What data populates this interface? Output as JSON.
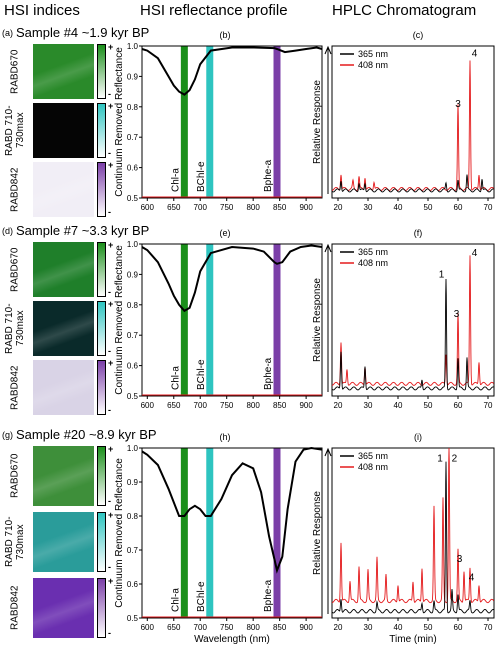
{
  "headers": {
    "col1": "HSI indices",
    "col2": "HSI reflectance profile",
    "col3": "HPLC Chromatogram"
  },
  "colors": {
    "chla": "#1a8f1a",
    "bchle": "#2ec4c0",
    "bphea": "#7b3fa8",
    "nm365": "#000000",
    "nm408": "#e41a1c"
  },
  "panels": [
    {
      "letters": [
        "(a)",
        "(b)",
        "(c)"
      ],
      "sample_title": "Sample #4 ~1.9 kyr BP",
      "heatmap_labels": [
        "RABD670",
        "RABD 710-730max",
        "RABD842"
      ],
      "heat_colors": [
        "#2a8a2a",
        "#060606",
        "#f1eef6"
      ]
    },
    {
      "letters": [
        "(d)",
        "(e)",
        "(f)"
      ],
      "sample_title": "Sample #7 ~3.3 kyr BP",
      "heatmap_labels": [
        "RABD670",
        "RABD 710-730max",
        "RABD842"
      ],
      "heat_colors": [
        "#1f7f2a",
        "#0a2a2a",
        "#d9d3e6"
      ]
    },
    {
      "letters": [
        "(g)",
        "(h)",
        "(i)"
      ],
      "sample_title": "Sample #20 ~8.9 kyr BP",
      "heatmap_labels": [
        "RABD670",
        "RABD 710-730max",
        "RABD842"
      ],
      "heat_colors": [
        "#3e8f3a",
        "#2a9c9a",
        "#6a2fb0"
      ]
    }
  ],
  "chart_data": [
    {
      "type": "line",
      "title": "(b)",
      "ylabel": "Continuum Removed Reflectance",
      "xlabel": "",
      "xlim": [
        590,
        930
      ],
      "ylim": [
        0.5,
        1.0
      ],
      "xticks": [
        600,
        650,
        700,
        750,
        800,
        850,
        900
      ],
      "yticks": [
        0.5,
        0.6,
        0.7,
        0.8,
        0.9,
        1.0
      ],
      "bands": [
        {
          "name": "Chl-a",
          "x": 670
        },
        {
          "name": "BChl-e",
          "x": 718
        },
        {
          "name": "Bphe-a",
          "x": 845
        }
      ],
      "x": [
        590,
        600,
        620,
        640,
        650,
        660,
        670,
        680,
        690,
        700,
        720,
        760,
        800,
        840,
        845,
        860,
        880,
        900,
        920,
        930
      ],
      "y": [
        0.99,
        0.985,
        0.96,
        0.9,
        0.87,
        0.85,
        0.84,
        0.855,
        0.89,
        0.94,
        0.985,
        0.995,
        0.995,
        0.993,
        0.99,
        0.98,
        0.985,
        0.99,
        0.995,
        0.99
      ]
    },
    {
      "type": "line",
      "title": "(e)",
      "ylabel": "Continuum Removed Reflectance",
      "xlabel": "",
      "xlim": [
        590,
        930
      ],
      "ylim": [
        0.5,
        1.0
      ],
      "xticks": [
        600,
        650,
        700,
        750,
        800,
        850,
        900
      ],
      "yticks": [
        0.5,
        0.6,
        0.7,
        0.8,
        0.9,
        1.0
      ],
      "bands": [
        {
          "name": "Chl-a",
          "x": 670
        },
        {
          "name": "BChl-e",
          "x": 718
        },
        {
          "name": "Bphe-a",
          "x": 845
        }
      ],
      "x": [
        590,
        600,
        620,
        640,
        650,
        660,
        670,
        680,
        690,
        700,
        720,
        760,
        800,
        820,
        840,
        845,
        855,
        870,
        890,
        910,
        930
      ],
      "y": [
        0.99,
        0.98,
        0.94,
        0.87,
        0.83,
        0.8,
        0.78,
        0.79,
        0.84,
        0.91,
        0.97,
        0.99,
        0.985,
        0.975,
        0.94,
        0.935,
        0.94,
        0.975,
        0.99,
        0.995,
        0.99
      ]
    },
    {
      "type": "line",
      "title": "(h)",
      "ylabel": "Continuum Removed Reflectance",
      "xlabel": "Wavelength (nm)",
      "xlim": [
        590,
        930
      ],
      "ylim": [
        0.5,
        1.0
      ],
      "xticks": [
        600,
        650,
        700,
        750,
        800,
        850,
        900
      ],
      "yticks": [
        0.5,
        0.6,
        0.7,
        0.8,
        0.9,
        1.0
      ],
      "bands": [
        {
          "name": "Chl-a",
          "x": 670
        },
        {
          "name": "BChl-e",
          "x": 718
        },
        {
          "name": "Bphe-a",
          "x": 845
        }
      ],
      "x": [
        590,
        600,
        620,
        640,
        650,
        660,
        670,
        680,
        690,
        700,
        710,
        720,
        740,
        760,
        780,
        800,
        815,
        830,
        845,
        855,
        865,
        880,
        895,
        910,
        930
      ],
      "y": [
        0.99,
        0.98,
        0.95,
        0.88,
        0.84,
        0.8,
        0.8,
        0.82,
        0.83,
        0.82,
        0.8,
        0.8,
        0.85,
        0.92,
        0.955,
        0.94,
        0.87,
        0.74,
        0.64,
        0.68,
        0.82,
        0.96,
        0.995,
        1.0,
        0.995
      ]
    },
    {
      "type": "line",
      "title": "(c)",
      "ylabel": "Relative Response",
      "xlabel": "",
      "xlim": [
        18,
        72
      ],
      "xticks": [
        20,
        30,
        40,
        50,
        60,
        70
      ],
      "series": [
        {
          "name": "365 nm",
          "baseline": 0.05,
          "peaks": [
            [
              21,
              0.07
            ],
            [
              27,
              0.05
            ],
            [
              29,
              0.05
            ],
            [
              56,
              0.05
            ],
            [
              60,
              0.07
            ],
            [
              63,
              0.1
            ],
            [
              68,
              0.08
            ]
          ]
        },
        {
          "name": "408 nm",
          "baseline": 0.06,
          "peaks": [
            [
              21,
              0.1
            ],
            [
              25,
              0.05
            ],
            [
              27,
              0.08
            ],
            [
              29,
              0.08
            ],
            [
              32,
              0.05
            ],
            [
              60,
              0.55
            ],
            [
              64,
              0.85
            ],
            [
              67,
              0.1
            ]
          ]
        }
      ],
      "annotations": [
        {
          "text": "3",
          "x": 60,
          "y": 0.6
        },
        {
          "text": "4",
          "x": 65.5,
          "y": 0.93
        }
      ]
    },
    {
      "type": "line",
      "title": "(f)",
      "ylabel": "Relative Response",
      "xlabel": "",
      "xlim": [
        18,
        72
      ],
      "xticks": [
        20,
        30,
        40,
        50,
        60,
        70
      ],
      "series": [
        {
          "name": "365 nm",
          "baseline": 0.05,
          "peaks": [
            [
              21,
              0.25
            ],
            [
              29,
              0.15
            ],
            [
              48,
              0.06
            ],
            [
              56,
              0.72
            ],
            [
              60,
              0.2
            ],
            [
              63,
              0.2
            ]
          ]
        },
        {
          "name": "408 nm",
          "baseline": 0.08,
          "peaks": [
            [
              21,
              0.28
            ],
            [
              23,
              0.1
            ],
            [
              29,
              0.12
            ],
            [
              56,
              0.2
            ],
            [
              60,
              0.46
            ],
            [
              64,
              0.85
            ],
            [
              67,
              0.15
            ]
          ]
        }
      ],
      "annotations": [
        {
          "text": "1",
          "x": 54.5,
          "y": 0.78
        },
        {
          "text": "3",
          "x": 59.5,
          "y": 0.52
        },
        {
          "text": "4",
          "x": 65.5,
          "y": 0.92
        }
      ]
    },
    {
      "type": "line",
      "title": "(i)",
      "ylabel": "Relative Response",
      "xlabel": "Time (min)",
      "xlim": [
        18,
        72
      ],
      "xticks": [
        20,
        30,
        40,
        50,
        60,
        70
      ],
      "series": [
        {
          "name": "365 nm",
          "baseline": 0.04,
          "peaks": [
            [
              21,
              0.08
            ],
            [
              33,
              0.05
            ],
            [
              48,
              0.05
            ],
            [
              52,
              0.06
            ],
            [
              56,
              0.88
            ],
            [
              58,
              0.12
            ],
            [
              60,
              0.1
            ],
            [
              64,
              0.06
            ]
          ]
        },
        {
          "name": "408 nm",
          "baseline": 0.1,
          "peaks": [
            [
              21,
              0.35
            ],
            [
              24,
              0.12
            ],
            [
              27,
              0.2
            ],
            [
              30,
              0.18
            ],
            [
              33,
              0.25
            ],
            [
              36,
              0.15
            ],
            [
              40,
              0.1
            ],
            [
              45,
              0.12
            ],
            [
              48,
              0.2
            ],
            [
              52,
              0.55
            ],
            [
              55,
              0.6
            ],
            [
              57,
              0.95
            ],
            [
              60,
              0.3
            ],
            [
              62,
              0.18
            ],
            [
              64,
              0.2
            ],
            [
              67,
              0.1
            ]
          ]
        }
      ],
      "annotations": [
        {
          "text": "1",
          "x": 54,
          "y": 0.92
        },
        {
          "text": "2",
          "x": 58.8,
          "y": 0.92
        },
        {
          "text": "3",
          "x": 60.5,
          "y": 0.33
        },
        {
          "text": "4",
          "x": 64.5,
          "y": 0.22
        }
      ]
    }
  ]
}
